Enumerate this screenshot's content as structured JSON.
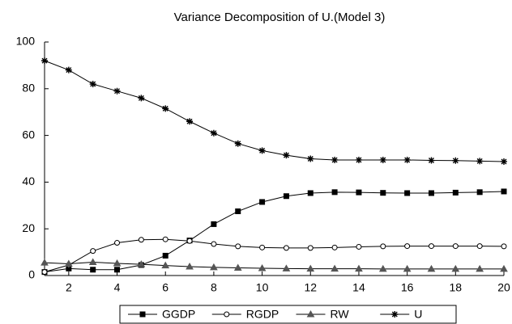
{
  "chart_data": {
    "type": "line",
    "title": "Variance Decomposition of U.(Model 3)",
    "x": [
      1,
      2,
      3,
      4,
      5,
      6,
      7,
      8,
      9,
      10,
      11,
      12,
      13,
      14,
      15,
      16,
      17,
      18,
      19,
      20
    ],
    "xlim": [
      1,
      20
    ],
    "xticks": [
      2,
      4,
      6,
      8,
      10,
      12,
      14,
      16,
      18,
      20
    ],
    "ylim": [
      0,
      100
    ],
    "yticks": [
      0,
      20,
      40,
      60,
      80,
      100
    ],
    "legend": "bottom",
    "series": [
      {
        "name": "GGDP",
        "color": "#000000",
        "marker": "square",
        "values": [
          1.5,
          3,
          2.5,
          2.5,
          4.5,
          8.5,
          15,
          22,
          27.5,
          31.5,
          34,
          35.3,
          35.7,
          35.6,
          35.4,
          35.3,
          35.3,
          35.5,
          35.7,
          36
        ]
      },
      {
        "name": "RGDP",
        "color": "#000000",
        "marker": "circle",
        "values": [
          1.5,
          4.5,
          10.5,
          14,
          15.3,
          15.5,
          14.8,
          13.5,
          12.5,
          12,
          11.8,
          11.8,
          12,
          12.3,
          12.5,
          12.6,
          12.6,
          12.6,
          12.6,
          12.5
        ]
      },
      {
        "name": "RW",
        "color": "#000000",
        "marker": "triangle",
        "values": [
          5.5,
          5,
          5.7,
          5.2,
          4.8,
          4.3,
          3.8,
          3.5,
          3.3,
          3.1,
          3,
          2.9,
          2.9,
          2.9,
          2.8,
          2.8,
          2.8,
          2.8,
          2.8,
          2.8
        ]
      },
      {
        "name": "U",
        "color": "#000000",
        "marker": "star",
        "values": [
          92,
          88,
          82,
          79,
          76,
          71.5,
          66,
          61,
          56.5,
          53.5,
          51.5,
          50,
          49.5,
          49.5,
          49.5,
          49.5,
          49.3,
          49.2,
          49,
          48.8
        ]
      }
    ]
  }
}
